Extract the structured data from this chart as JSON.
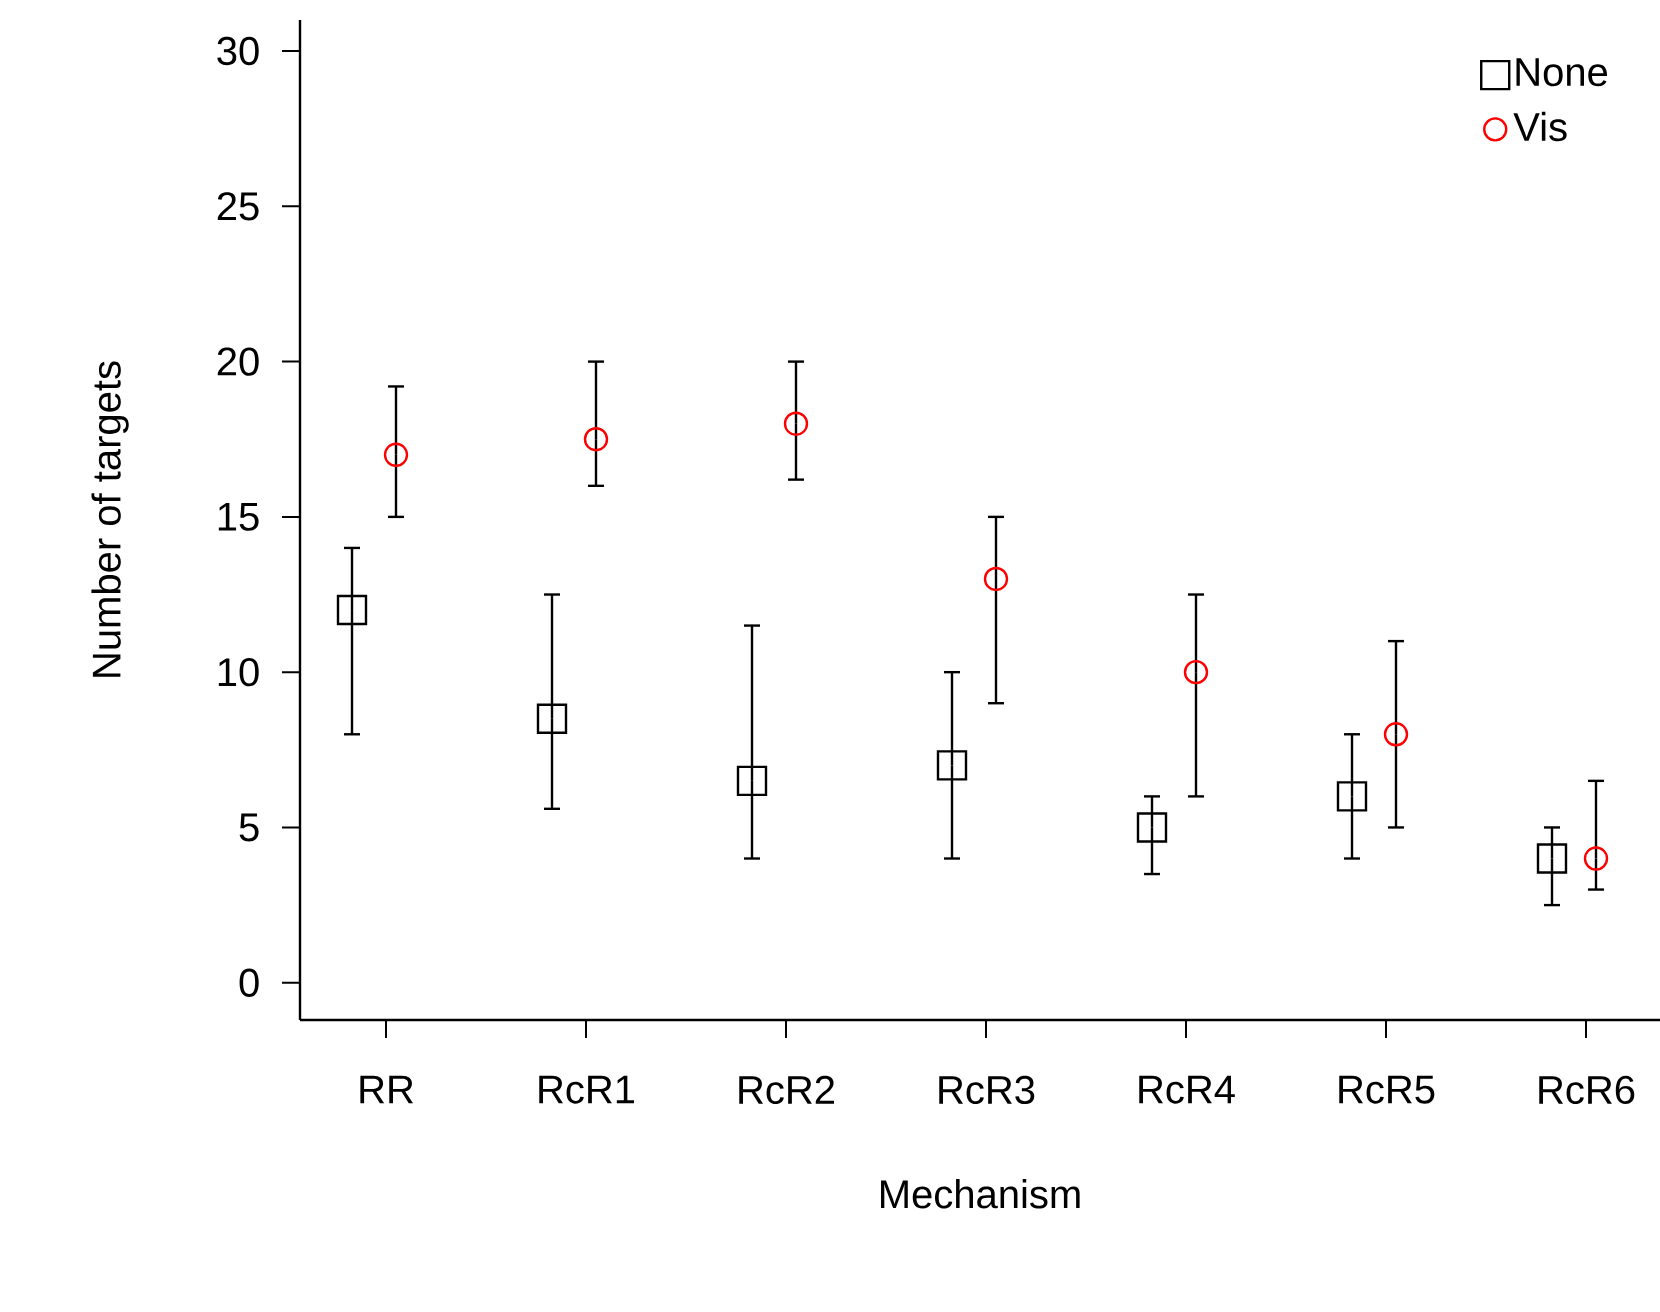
{
  "chart_data": {
    "type": "scatter",
    "xlabel": "Mechanism",
    "ylabel": "Number of targets",
    "categories": [
      "RR",
      "RcR1",
      "RcR2",
      "RcR3",
      "RcR4",
      "RcR5",
      "RcR6"
    ],
    "series": [
      {
        "name": "None",
        "color": "#000000",
        "marker": "square",
        "values": [
          12,
          8.5,
          6.5,
          7,
          5,
          6,
          4
        ],
        "errors": [
          [
            8,
            14
          ],
          [
            5.6,
            12.5
          ],
          [
            4,
            11.5
          ],
          [
            4,
            10
          ],
          [
            3.5,
            6
          ],
          [
            4,
            8
          ],
          [
            2.5,
            5
          ]
        ]
      },
      {
        "name": "Vis",
        "color": "#ff0000",
        "marker": "circle",
        "values": [
          17,
          17.5,
          18,
          13,
          10,
          8,
          4
        ],
        "errors": [
          [
            15,
            19.2
          ],
          [
            16,
            20
          ],
          [
            16.2,
            20
          ],
          [
            9,
            15
          ],
          [
            6,
            12.5
          ],
          [
            5,
            11
          ],
          [
            3,
            6.5
          ]
        ]
      }
    ],
    "ylim": [
      -1.2,
      31
    ],
    "yticks": [
      0,
      5,
      10,
      15,
      20,
      25,
      30
    ],
    "grid": false,
    "legend": "top right"
  }
}
